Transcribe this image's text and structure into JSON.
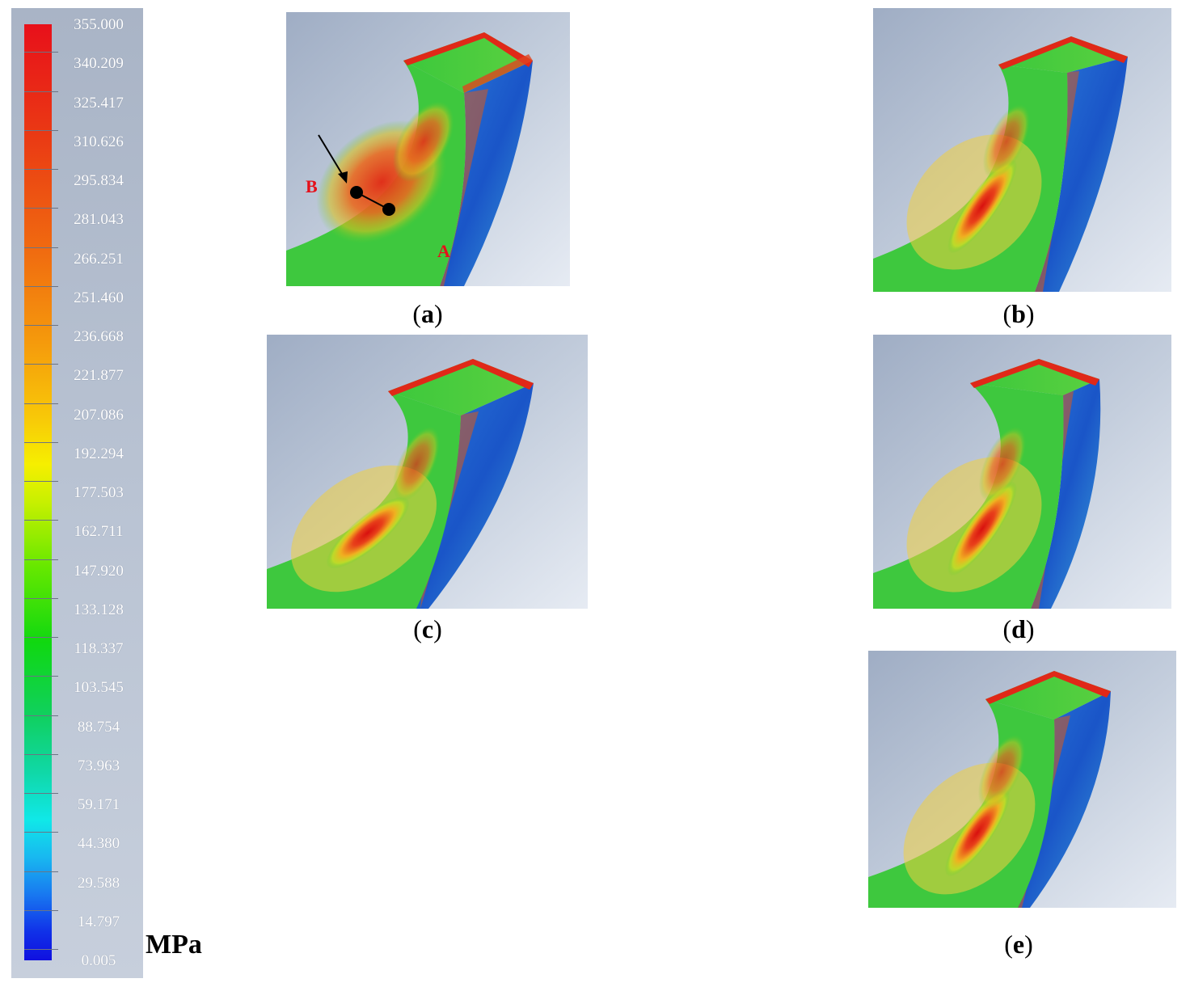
{
  "legend": {
    "unit": "MPa",
    "values": [
      "355.000",
      "340.209",
      "325.417",
      "310.626",
      "295.834",
      "281.043",
      "266.251",
      "251.460",
      "236.668",
      "221.877",
      "207.086",
      "192.294",
      "177.503",
      "162.711",
      "147.920",
      "133.128",
      "118.337",
      "103.545",
      "88.754",
      "73.963",
      "59.171",
      "44.380",
      "29.588",
      "14.797",
      "0.005"
    ]
  },
  "panels": [
    {
      "id": "a",
      "letter": "a",
      "point_labels": [
        "B",
        "A"
      ]
    },
    {
      "id": "b",
      "letter": "b"
    },
    {
      "id": "c",
      "letter": "c"
    },
    {
      "id": "d",
      "letter": "d"
    },
    {
      "id": "e",
      "letter": "e"
    }
  ],
  "colors": {
    "max": "#e8101a",
    "min": "#1010e0",
    "mid": "#10d810"
  }
}
